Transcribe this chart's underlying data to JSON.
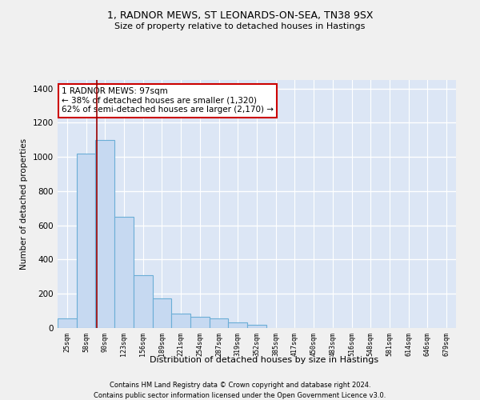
{
  "title_line1": "1, RADNOR MEWS, ST LEONARDS-ON-SEA, TN38 9SX",
  "title_line2": "Size of property relative to detached houses in Hastings",
  "xlabel": "Distribution of detached houses by size in Hastings",
  "ylabel": "Number of detached properties",
  "bar_color": "#c6d9f1",
  "bar_edgecolor": "#6baed6",
  "categories": [
    "25sqm",
    "58sqm",
    "90sqm",
    "123sqm",
    "156sqm",
    "189sqm",
    "221sqm",
    "254sqm",
    "287sqm",
    "319sqm",
    "352sqm",
    "385sqm",
    "417sqm",
    "450sqm",
    "483sqm",
    "516sqm",
    "548sqm",
    "581sqm",
    "614sqm",
    "646sqm",
    "679sqm"
  ],
  "values": [
    55,
    1020,
    1100,
    650,
    310,
    175,
    85,
    65,
    55,
    35,
    20,
    0,
    0,
    0,
    0,
    0,
    0,
    0,
    0,
    0,
    0
  ],
  "ylim": [
    0,
    1450
  ],
  "yticks": [
    0,
    200,
    400,
    600,
    800,
    1000,
    1200,
    1400
  ],
  "annotation_box_text": "1 RADNOR MEWS: 97sqm\n← 38% of detached houses are smaller (1,320)\n62% of semi-detached houses are larger (2,170) →",
  "vline_x_data": 1.55,
  "annotation_box_color": "#ffffff",
  "annotation_box_edgecolor": "#cc0000",
  "footer_line1": "Contains HM Land Registry data © Crown copyright and database right 2024.",
  "footer_line2": "Contains public sector information licensed under the Open Government Licence v3.0.",
  "fig_bg_color": "#f0f0f0",
  "plot_bg_color": "#dce6f5",
  "grid_color": "#ffffff"
}
